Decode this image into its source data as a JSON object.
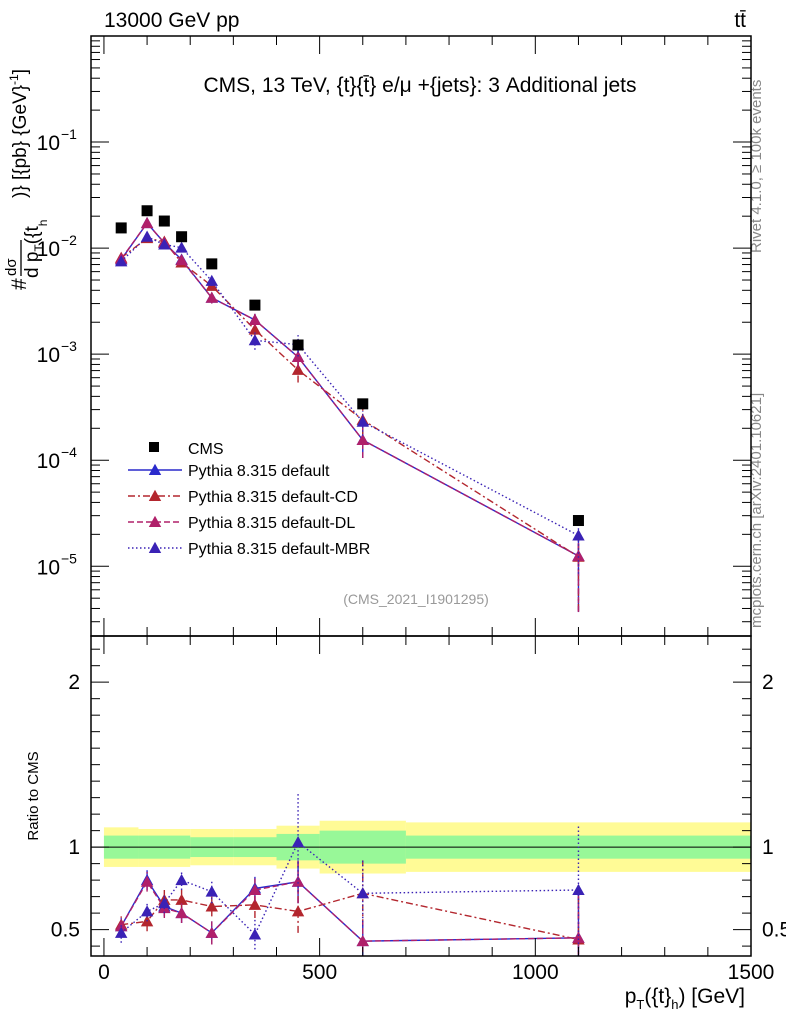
{
  "header": {
    "left": "13000 GeV pp",
    "right": "tt̄",
    "side_top": "Rivet 4.1.0, ≥ 100k events",
    "side_bottom": "mcplots.cern.ch [arXiv:2401.10621]"
  },
  "chart_data": [
    {
      "type": "scatter",
      "title": "CMS, 13 TeV, {t}{t̄} e/μ +{jets}: 3 Additional jets",
      "analysis_id": "(CMS_2021_I1901295)",
      "ylabel_parts": {
        "hash": "#",
        "num": "dσ",
        "den": "d p",
        "den_sub": "T",
        "den_rest": "({t",
        "den_sub2": "h",
        "tail": ")} [{pb} {GeV}",
        "tail_sup": "-1",
        "tail_end": "]"
      },
      "yscale": "log",
      "ylim": [
        2.2e-06,
        1.0
      ],
      "xlim": [
        -30,
        1500
      ],
      "y_ticks": [
        {
          "value": 1e-05,
          "base": "10",
          "exp": "−5"
        },
        {
          "value": 0.0001,
          "base": "10",
          "exp": "−4"
        },
        {
          "value": 0.001,
          "base": "10",
          "exp": "−3"
        },
        {
          "value": 0.01,
          "base": "10",
          "exp": "−2"
        },
        {
          "value": 0.1,
          "base": "10",
          "exp": "−1"
        }
      ],
      "legend_position": "lower-left",
      "data": {
        "name": "CMS",
        "x": [
          40,
          100,
          140,
          180,
          250,
          350,
          450,
          600,
          1100
        ],
        "y": [
          0.0155,
          0.0225,
          0.018,
          0.0128,
          0.0071,
          0.0029,
          0.00122,
          0.00034,
          2.7e-05
        ]
      },
      "series": [
        {
          "name": "Pythia 8.315 default",
          "color": "#2a2acc",
          "dash": "",
          "x": [
            40,
            100,
            140,
            180,
            250,
            350,
            450,
            600,
            1100
          ],
          "y": [
            0.0078,
            0.0172,
            0.0112,
            0.0078,
            0.0034,
            0.0021,
            0.00094,
            0.000155,
            1.25e-05
          ],
          "err_lo": [
            0.0005,
            0.0012,
            0.001,
            0.0007,
            0.0004,
            0.0003,
            0.0002,
            5e-05,
            8.8e-06
          ],
          "err_hi": [
            0.0005,
            0.0012,
            0.001,
            0.0007,
            0.0004,
            0.0003,
            0.0002,
            5e-05,
            7.5e-06
          ]
        },
        {
          "name": "Pythia 8.315 default-CD",
          "color": "#b3262e",
          "dash": "7,3,2,3",
          "x": [
            40,
            100,
            140,
            180,
            250,
            350,
            450,
            600,
            1100
          ],
          "y": [
            0.0081,
            0.0124,
            0.0115,
            0.0073,
            0.0044,
            0.0017,
            0.00071,
            0.00024,
            1.23e-05
          ],
          "err_lo": [
            0.0005,
            0.001,
            0.001,
            0.0007,
            0.0004,
            0.0003,
            0.00017,
            7e-05,
            8.5e-06
          ],
          "err_hi": [
            0.0005,
            0.001,
            0.001,
            0.0007,
            0.0004,
            0.0003,
            0.00017,
            7e-05,
            7.5e-06
          ]
        },
        {
          "name": "Pythia 8.315 default-DL",
          "color": "#b0206a",
          "dash": "6,3",
          "x": [
            40,
            100,
            140,
            180,
            250,
            350,
            450,
            600,
            1100
          ],
          "y": [
            0.0079,
            0.0172,
            0.0112,
            0.0077,
            0.0034,
            0.0021,
            0.00094,
            0.000155,
            1.25e-05
          ],
          "err_lo": [
            0.0005,
            0.0012,
            0.001,
            0.0007,
            0.0004,
            0.0003,
            0.0002,
            5e-05,
            8.8e-06
          ],
          "err_hi": [
            0.0005,
            0.0012,
            0.001,
            0.0007,
            0.0004,
            0.0003,
            0.0002,
            5e-05,
            7.5e-06
          ]
        },
        {
          "name": "Pythia 8.315 default-MBR",
          "color": "#3a22b5",
          "dash": "1.5,2.5",
          "x": [
            40,
            100,
            140,
            180,
            250,
            350,
            450,
            600,
            1100
          ],
          "y": [
            0.0075,
            0.0128,
            0.0108,
            0.0101,
            0.0049,
            0.00135,
            0.00123,
            0.00023,
            1.95e-05
          ],
          "err_lo": [
            0.0005,
            0.001,
            0.001,
            0.0008,
            0.0005,
            0.00025,
            0.00028,
            6e-05,
            1.1e-05
          ],
          "err_hi": [
            0.0005,
            0.001,
            0.001,
            0.0008,
            0.0005,
            0.00025,
            0.00028,
            6e-05,
            1.1e-05
          ]
        }
      ]
    },
    {
      "type": "line",
      "ylabel": "Ratio to CMS",
      "xlabel_parts": {
        "p": "p",
        "sub": "T",
        "mid": "({t}",
        "sub2": "h",
        "end": ") [GeV]"
      },
      "xlim": [
        -30,
        1500
      ],
      "ylim": [
        0.34,
        2.28
      ],
      "y_ticks": [
        "0.5",
        "1",
        "2"
      ],
      "x_ticks": [
        "0",
        "500",
        "1000",
        "1500"
      ],
      "reference": 1,
      "bands": [
        {
          "x0": 0,
          "x1": 80,
          "g_lo": 0.93,
          "g_hi": 1.07,
          "y_lo": 0.88,
          "y_hi": 1.12
        },
        {
          "x0": 80,
          "x1": 200,
          "g_lo": 0.93,
          "g_hi": 1.07,
          "y_lo": 0.88,
          "y_hi": 1.11
        },
        {
          "x0": 200,
          "x1": 300,
          "g_lo": 0.94,
          "g_hi": 1.06,
          "y_lo": 0.89,
          "y_hi": 1.11
        },
        {
          "x0": 300,
          "x1": 400,
          "g_lo": 0.94,
          "g_hi": 1.06,
          "y_lo": 0.89,
          "y_hi": 1.11
        },
        {
          "x0": 400,
          "x1": 500,
          "g_lo": 0.92,
          "g_hi": 1.08,
          "y_lo": 0.87,
          "y_hi": 1.13
        },
        {
          "x0": 500,
          "x1": 700,
          "g_lo": 0.9,
          "g_hi": 1.1,
          "y_lo": 0.84,
          "y_hi": 1.16
        },
        {
          "x0": 700,
          "x1": 1500,
          "g_lo": 0.93,
          "g_hi": 1.07,
          "y_lo": 0.85,
          "y_hi": 1.15
        }
      ],
      "series": [
        {
          "name": "Pythia 8.315 default",
          "color": "#2a2acc",
          "dash": "",
          "x": [
            40,
            100,
            140,
            180,
            250,
            350,
            450,
            600,
            1100
          ],
          "y": [
            0.52,
            0.8,
            0.64,
            0.6,
            0.48,
            0.75,
            0.79,
            0.43,
            0.45
          ],
          "err": [
            0.05,
            0.06,
            0.06,
            0.06,
            0.07,
            0.07,
            0.13,
            0.12,
            0.32
          ]
        },
        {
          "name": "Pythia 8.315 default-CD",
          "color": "#b3262e",
          "dash": "7,3,2,3",
          "x": [
            40,
            100,
            140,
            180,
            250,
            350,
            450,
            600,
            1100
          ],
          "y": [
            0.53,
            0.55,
            0.68,
            0.68,
            0.64,
            0.65,
            0.61,
            0.72,
            0.44
          ],
          "err": [
            0.05,
            0.06,
            0.06,
            0.06,
            0.06,
            0.08,
            0.13,
            0.2,
            0.33
          ]
        },
        {
          "name": "Pythia 8.315 default-DL",
          "color": "#b0206a",
          "dash": "6,3",
          "x": [
            40,
            100,
            140,
            180,
            250,
            350,
            450,
            600,
            1100
          ],
          "y": [
            0.52,
            0.79,
            0.63,
            0.6,
            0.48,
            0.74,
            0.79,
            0.43,
            0.45
          ],
          "err": [
            0.05,
            0.06,
            0.06,
            0.06,
            0.07,
            0.07,
            0.13,
            0.12,
            0.32
          ]
        },
        {
          "name": "Pythia 8.315 default-MBR",
          "color": "#3a22b5",
          "dash": "1.5,2.5",
          "x": [
            40,
            100,
            140,
            180,
            250,
            350,
            450,
            600,
            1100
          ],
          "y": [
            0.48,
            0.61,
            0.66,
            0.8,
            0.73,
            0.47,
            1.03,
            0.72,
            0.74
          ],
          "err": [
            0.06,
            0.06,
            0.06,
            0.06,
            0.07,
            0.09,
            0.3,
            0.2,
            0.4
          ]
        }
      ]
    }
  ]
}
